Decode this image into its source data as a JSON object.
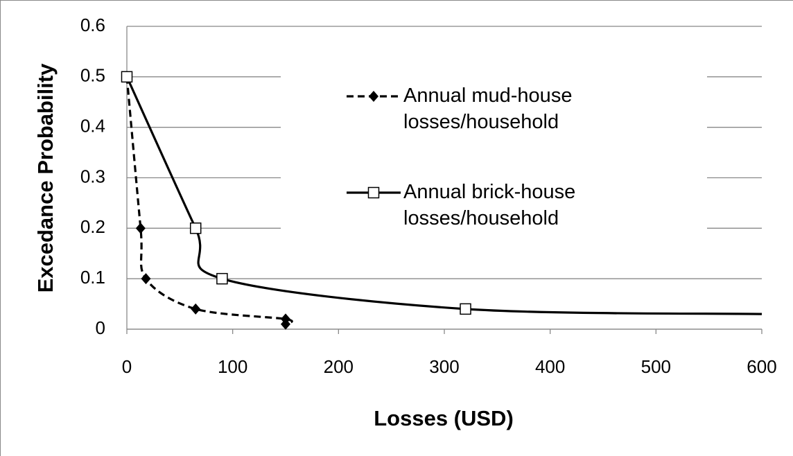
{
  "chart_data": {
    "type": "line",
    "x_label": "Losses (USD)",
    "y_label": "Excedance Probability",
    "xlim": [
      0,
      600
    ],
    "xticks": [
      0,
      100,
      200,
      300,
      400,
      500,
      600
    ],
    "ylim": [
      0,
      0.6
    ],
    "yticks": [
      0,
      0.1,
      0.2,
      0.3,
      0.4,
      0.5,
      0.6
    ],
    "grid": true,
    "series": [
      {
        "name": "Annual mud-house losses/household",
        "color": "#000000",
        "dash": true,
        "marker": "diamond",
        "x": [
          0,
          13,
          18,
          65,
          150,
          150
        ],
        "values": [
          0.5,
          0.2,
          0.1,
          0.04,
          0.02,
          0.01
        ]
      },
      {
        "name": "Annual brick-house losses/household",
        "color": "#000000",
        "dash": false,
        "marker": "square",
        "x": [
          0,
          65,
          90,
          320,
          600
        ],
        "values": [
          0.5,
          0.2,
          0.1,
          0.04,
          0.03
        ]
      }
    ]
  }
}
